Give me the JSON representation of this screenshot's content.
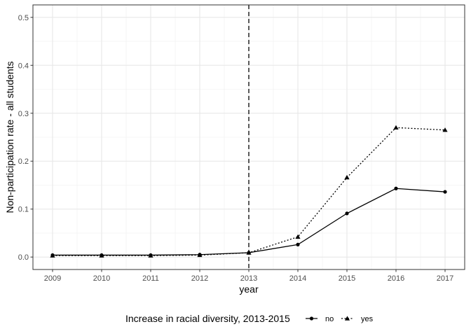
{
  "chart_data": {
    "type": "line",
    "title": "",
    "xlabel": "year",
    "ylabel": "Non-participation rate - all students",
    "x": [
      2009,
      2010,
      2011,
      2012,
      2013,
      2014,
      2015,
      2016,
      2017
    ],
    "x_ticks": [
      "2009",
      "2010",
      "2011",
      "2012",
      "2013",
      "2014",
      "2015",
      "2016",
      "2017"
    ],
    "y_ticks": [
      "0.0",
      "0.1",
      "0.2",
      "0.3",
      "0.4",
      "0.5"
    ],
    "xlim": [
      2008.6,
      2017.4
    ],
    "ylim": [
      -0.026,
      0.526
    ],
    "grid": true,
    "vline": {
      "x": 2013,
      "style": "dashed"
    },
    "series": [
      {
        "name": "no",
        "line_style": "solid",
        "marker": "circle",
        "color": "#000000",
        "values": [
          0.004,
          0.004,
          0.004,
          0.005,
          0.009,
          0.026,
          0.091,
          0.143,
          0.136
        ]
      },
      {
        "name": "yes",
        "line_style": "dotted",
        "marker": "triangle",
        "color": "#000000",
        "values": [
          0.003,
          0.003,
          0.003,
          0.004,
          0.009,
          0.042,
          0.166,
          0.27,
          0.265
        ]
      }
    ],
    "legend": {
      "title": "Increase in racial diversity, 2013-2015",
      "position": "bottom"
    }
  }
}
